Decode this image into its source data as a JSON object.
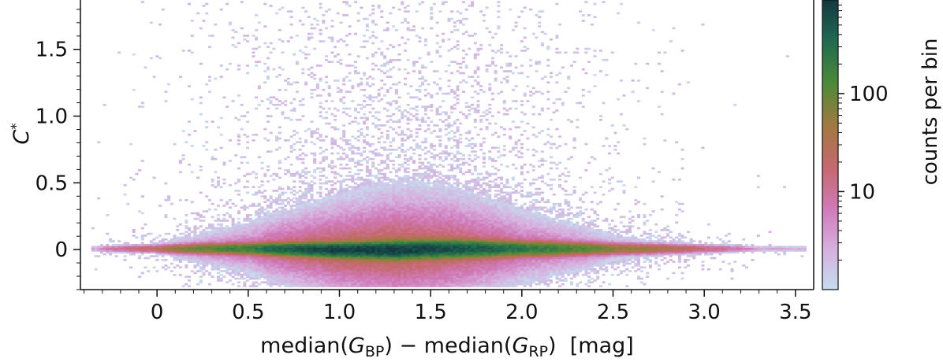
{
  "chart_data": {
    "type": "heatmap",
    "x_axis": {
      "label_parts": [
        "median(",
        "G",
        "BP",
        ") − median(",
        "G",
        "RP",
        ")  [mag]"
      ],
      "range": [
        -0.42,
        3.6
      ],
      "ticks": [
        0,
        0.5,
        1.0,
        1.5,
        2.0,
        2.5,
        3.0,
        3.5
      ],
      "tick_labels": [
        "0",
        "0.5",
        "1.0",
        "1.5",
        "2.0",
        "2.5",
        "3.0",
        "3.5"
      ]
    },
    "y_axis": {
      "label_parts": [
        "C",
        "*"
      ],
      "range": [
        -0.3,
        1.87
      ],
      "ticks": [
        0,
        0.5,
        1.0,
        1.5
      ],
      "tick_labels": [
        "0",
        "0.5",
        "1.0",
        "1.5"
      ]
    },
    "colorbar": {
      "label": "counts per bin",
      "scale": "log",
      "range": [
        1,
        900
      ],
      "ticks": [
        10,
        100
      ],
      "tick_labels": [
        "10",
        "100"
      ],
      "colormap": [
        "#c6dcef",
        "#d6b0de",
        "#d07ab8",
        "#c6686e",
        "#a07a40",
        "#4c8a38",
        "#1f6a50",
        "#143840"
      ]
    },
    "density_ridge": [
      {
        "x": -0.35,
        "y": 0.0,
        "peak": 3,
        "spread": 0.012
      },
      {
        "x": 0.0,
        "y": 0.0,
        "peak": 25,
        "spread": 0.015
      },
      {
        "x": 0.5,
        "y": 0.0,
        "peak": 200,
        "spread": 0.02
      },
      {
        "x": 1.0,
        "y": -0.01,
        "peak": 800,
        "spread": 0.025
      },
      {
        "x": 1.3,
        "y": -0.01,
        "peak": 850,
        "spread": 0.03
      },
      {
        "x": 1.6,
        "y": 0.0,
        "peak": 600,
        "spread": 0.03
      },
      {
        "x": 2.0,
        "y": 0.0,
        "peak": 250,
        "spread": 0.025
      },
      {
        "x": 2.5,
        "y": 0.0,
        "peak": 60,
        "spread": 0.02
      },
      {
        "x": 3.0,
        "y": 0.0,
        "peak": 15,
        "spread": 0.015
      },
      {
        "x": 3.3,
        "y": 0.0,
        "peak": 3,
        "spread": 0.012
      }
    ]
  }
}
